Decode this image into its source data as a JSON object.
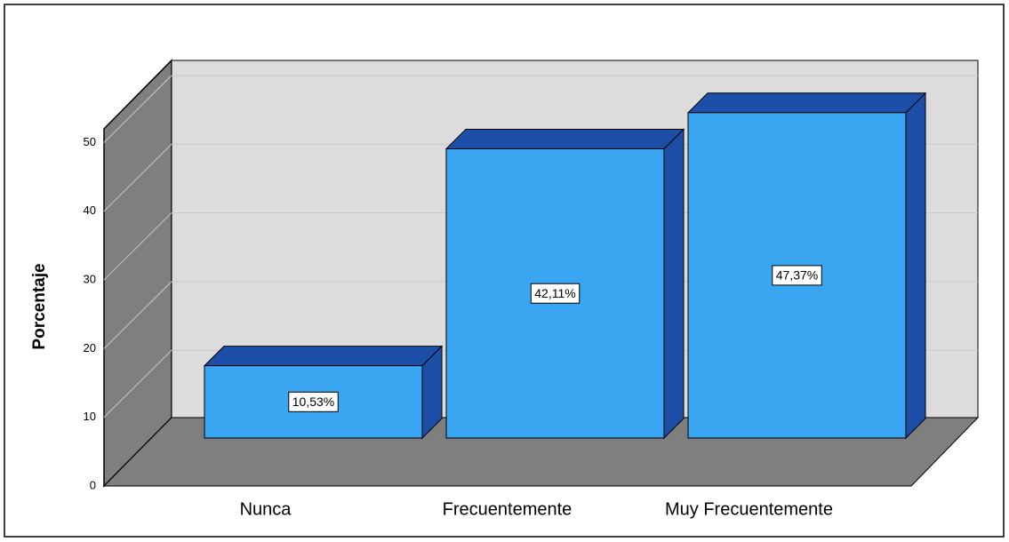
{
  "chart_data": {
    "type": "bar3d",
    "y_label": "Porcentaje",
    "categories": [
      "Nunca",
      "Frecuentemente",
      "Muy Frecuentemente"
    ],
    "values": [
      10.53,
      42.11,
      47.37
    ],
    "value_labels": [
      "10,53%",
      "42,11%",
      "47,37%"
    ],
    "color": "#3aa6f2",
    "side_color": "#1e4fa8",
    "ylim": [
      0,
      52
    ],
    "yticks": [
      0,
      10,
      20,
      30,
      40,
      50
    ],
    "grid": true
  }
}
